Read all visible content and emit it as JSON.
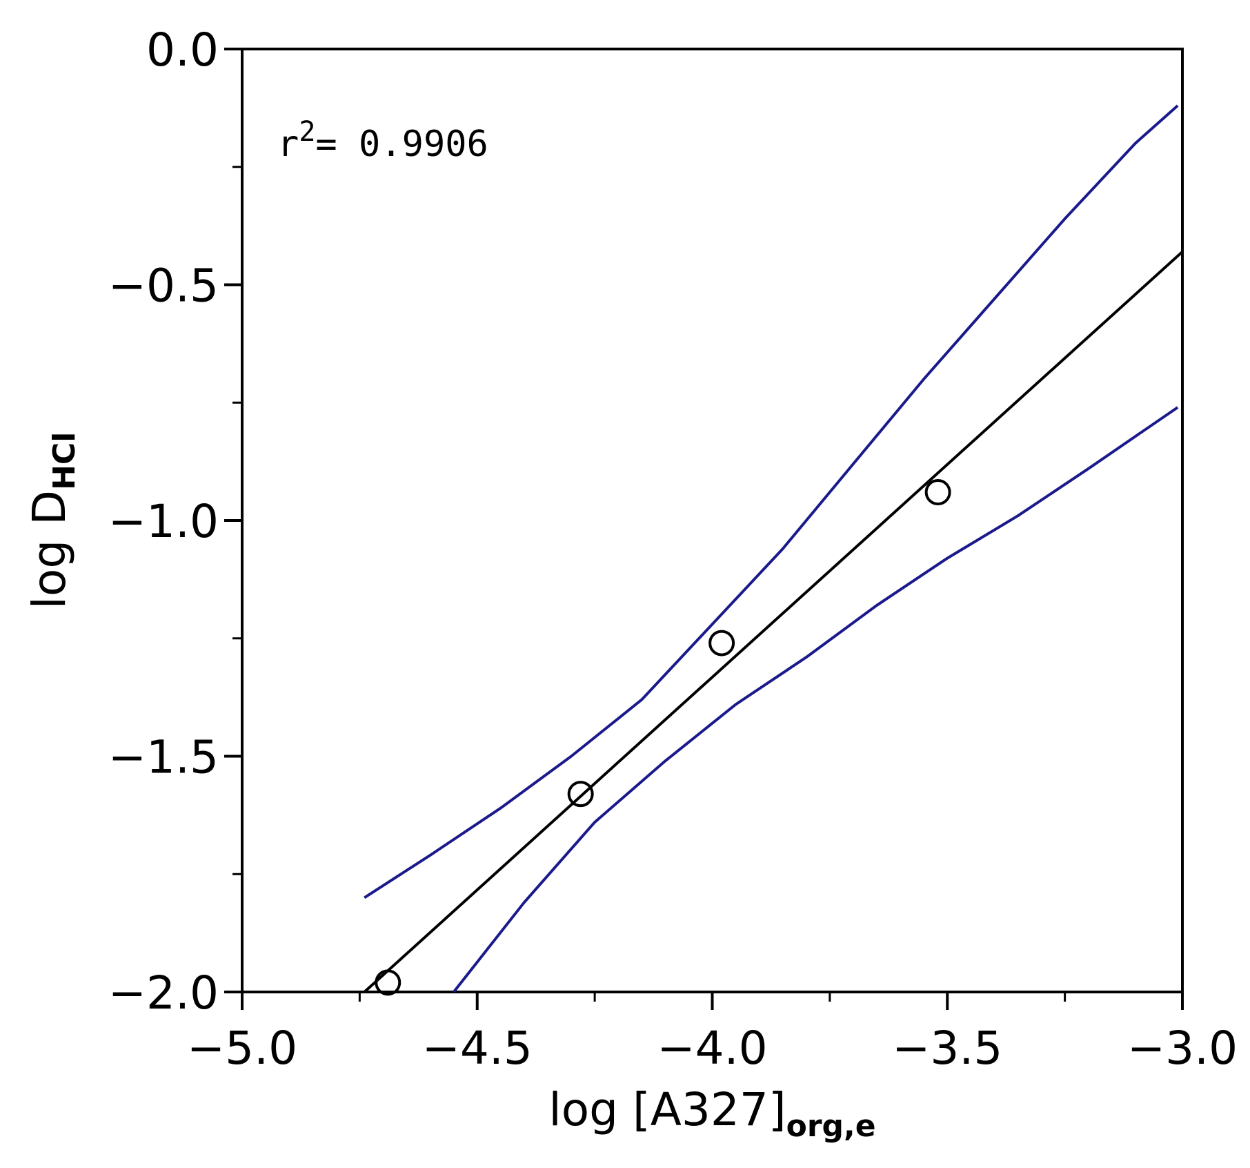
{
  "chart_data": {
    "type": "scatter",
    "xlabel": {
      "main": "log [A327]",
      "sub": "org,e"
    },
    "ylabel": {
      "main": "log D",
      "sub": "HCl"
    },
    "xlim": [
      -5.0,
      -3.0
    ],
    "ylim": [
      -2.0,
      0.0
    ],
    "x_ticks": [
      -5.0,
      -4.5,
      -4.0,
      -3.5,
      -3.0
    ],
    "x_tick_labels": [
      "−5.0",
      "−4.5",
      "−4.0",
      "−3.5",
      "−3.0"
    ],
    "y_ticks": [
      0.0,
      -0.5,
      -1.0,
      -1.5,
      -2.0
    ],
    "y_tick_labels": [
      "0.0",
      "−0.5",
      "−1.0",
      "−1.5",
      "−2.0"
    ],
    "x_minor_ticks": [
      -4.75,
      -4.25,
      -3.75,
      -3.25
    ],
    "y_minor_ticks": [
      -0.25,
      -0.75,
      -1.25,
      -1.75
    ],
    "grid": false,
    "annotation": {
      "prefix": "r",
      "superscript": "2",
      "text": "=  0.9906"
    },
    "points": [
      {
        "x": -4.69,
        "y": -1.98
      },
      {
        "x": -4.28,
        "y": -1.58
      },
      {
        "x": -3.98,
        "y": -1.26
      },
      {
        "x": -3.52,
        "y": -0.94
      }
    ],
    "fit_line": {
      "color": "#000000",
      "x": [
        -4.74,
        -3.0
      ],
      "y": [
        -2.0,
        -0.43
      ]
    },
    "confidence_upper": {
      "color": "#1a1a8c",
      "x": [
        -4.74,
        -4.6,
        -4.45,
        -4.3,
        -4.15,
        -4.0,
        -3.85,
        -3.7,
        -3.55,
        -3.4,
        -3.25,
        -3.1,
        -3.01
      ],
      "y": [
        -1.8,
        -1.71,
        -1.61,
        -1.5,
        -1.38,
        -1.22,
        -1.06,
        -0.88,
        -0.7,
        -0.53,
        -0.36,
        -0.2,
        -0.12
      ]
    },
    "confidence_lower": {
      "color": "#1a1a8c",
      "x": [
        -4.55,
        -4.4,
        -4.25,
        -4.1,
        -3.95,
        -3.8,
        -3.65,
        -3.5,
        -3.35,
        -3.2,
        -3.01
      ],
      "y": [
        -2.0,
        -1.81,
        -1.64,
        -1.51,
        -1.39,
        -1.29,
        -1.18,
        -1.08,
        -0.99,
        -0.89,
        -0.76
      ]
    }
  }
}
